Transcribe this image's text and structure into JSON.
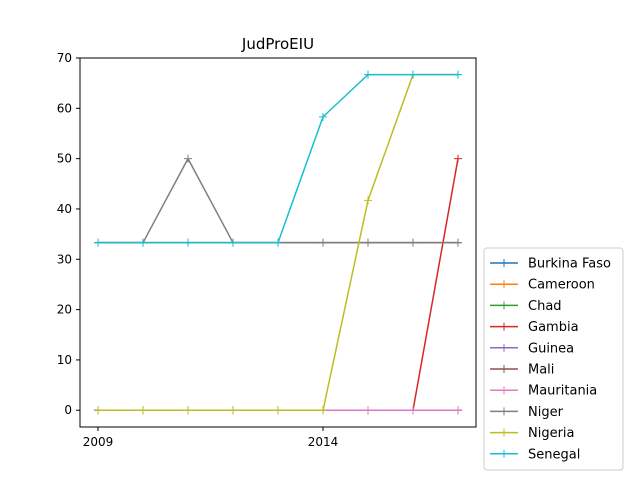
{
  "chart_data": {
    "type": "line",
    "title": "JudProEIU",
    "xlabel": "",
    "ylabel": "",
    "x": [
      2009,
      2010,
      2011,
      2012,
      2013,
      2014,
      2015,
      2016,
      2017
    ],
    "xlim": [
      2008.6,
      2017.4
    ],
    "ylim": [
      -3.33,
      70
    ],
    "x_ticks": [
      2009,
      2014
    ],
    "y_ticks": [
      0,
      10,
      20,
      30,
      40,
      50,
      60,
      70
    ],
    "grid": false,
    "legend_position": "outside-right-bottom",
    "series": [
      {
        "name": "Burkina Faso",
        "color": "#1f77b4",
        "values": [
          0,
          0,
          0,
          0,
          0,
          0,
          0,
          0,
          0
        ]
      },
      {
        "name": "Cameroon",
        "color": "#ff7f0e",
        "values": [
          0,
          0,
          0,
          0,
          0,
          0,
          0,
          0,
          0
        ]
      },
      {
        "name": "Chad",
        "color": "#2ca02c",
        "values": [
          0,
          0,
          0,
          0,
          0,
          0,
          0,
          0,
          0
        ]
      },
      {
        "name": "Gambia",
        "color": "#d62728",
        "values": [
          0,
          0,
          0,
          0,
          0,
          0,
          0,
          0,
          50
        ]
      },
      {
        "name": "Guinea",
        "color": "#9467bd",
        "values": [
          0,
          0,
          0,
          0,
          0,
          0,
          0,
          0,
          0
        ]
      },
      {
        "name": "Mali",
        "color": "#8c564b",
        "values": [
          33.3,
          33.3,
          33.3,
          33.3,
          33.3,
          33.3,
          33.3,
          33.3,
          33.3
        ]
      },
      {
        "name": "Mauritania",
        "color": "#e377c2",
        "values": [
          0,
          0,
          0,
          0,
          0,
          0,
          0,
          0,
          0
        ]
      },
      {
        "name": "Niger",
        "color": "#7f7f7f",
        "values": [
          33.3,
          33.3,
          50,
          33.3,
          33.3,
          33.3,
          33.3,
          33.3,
          33.3
        ]
      },
      {
        "name": "Nigeria",
        "color": "#bcbd22",
        "values": [
          0,
          0,
          0,
          0,
          0,
          0,
          41.7,
          66.7,
          66.7
        ]
      },
      {
        "name": "Senegal",
        "color": "#17becf",
        "values": [
          33.3,
          33.3,
          33.3,
          33.3,
          33.3,
          58.3,
          66.7,
          66.7,
          66.7
        ]
      }
    ]
  }
}
